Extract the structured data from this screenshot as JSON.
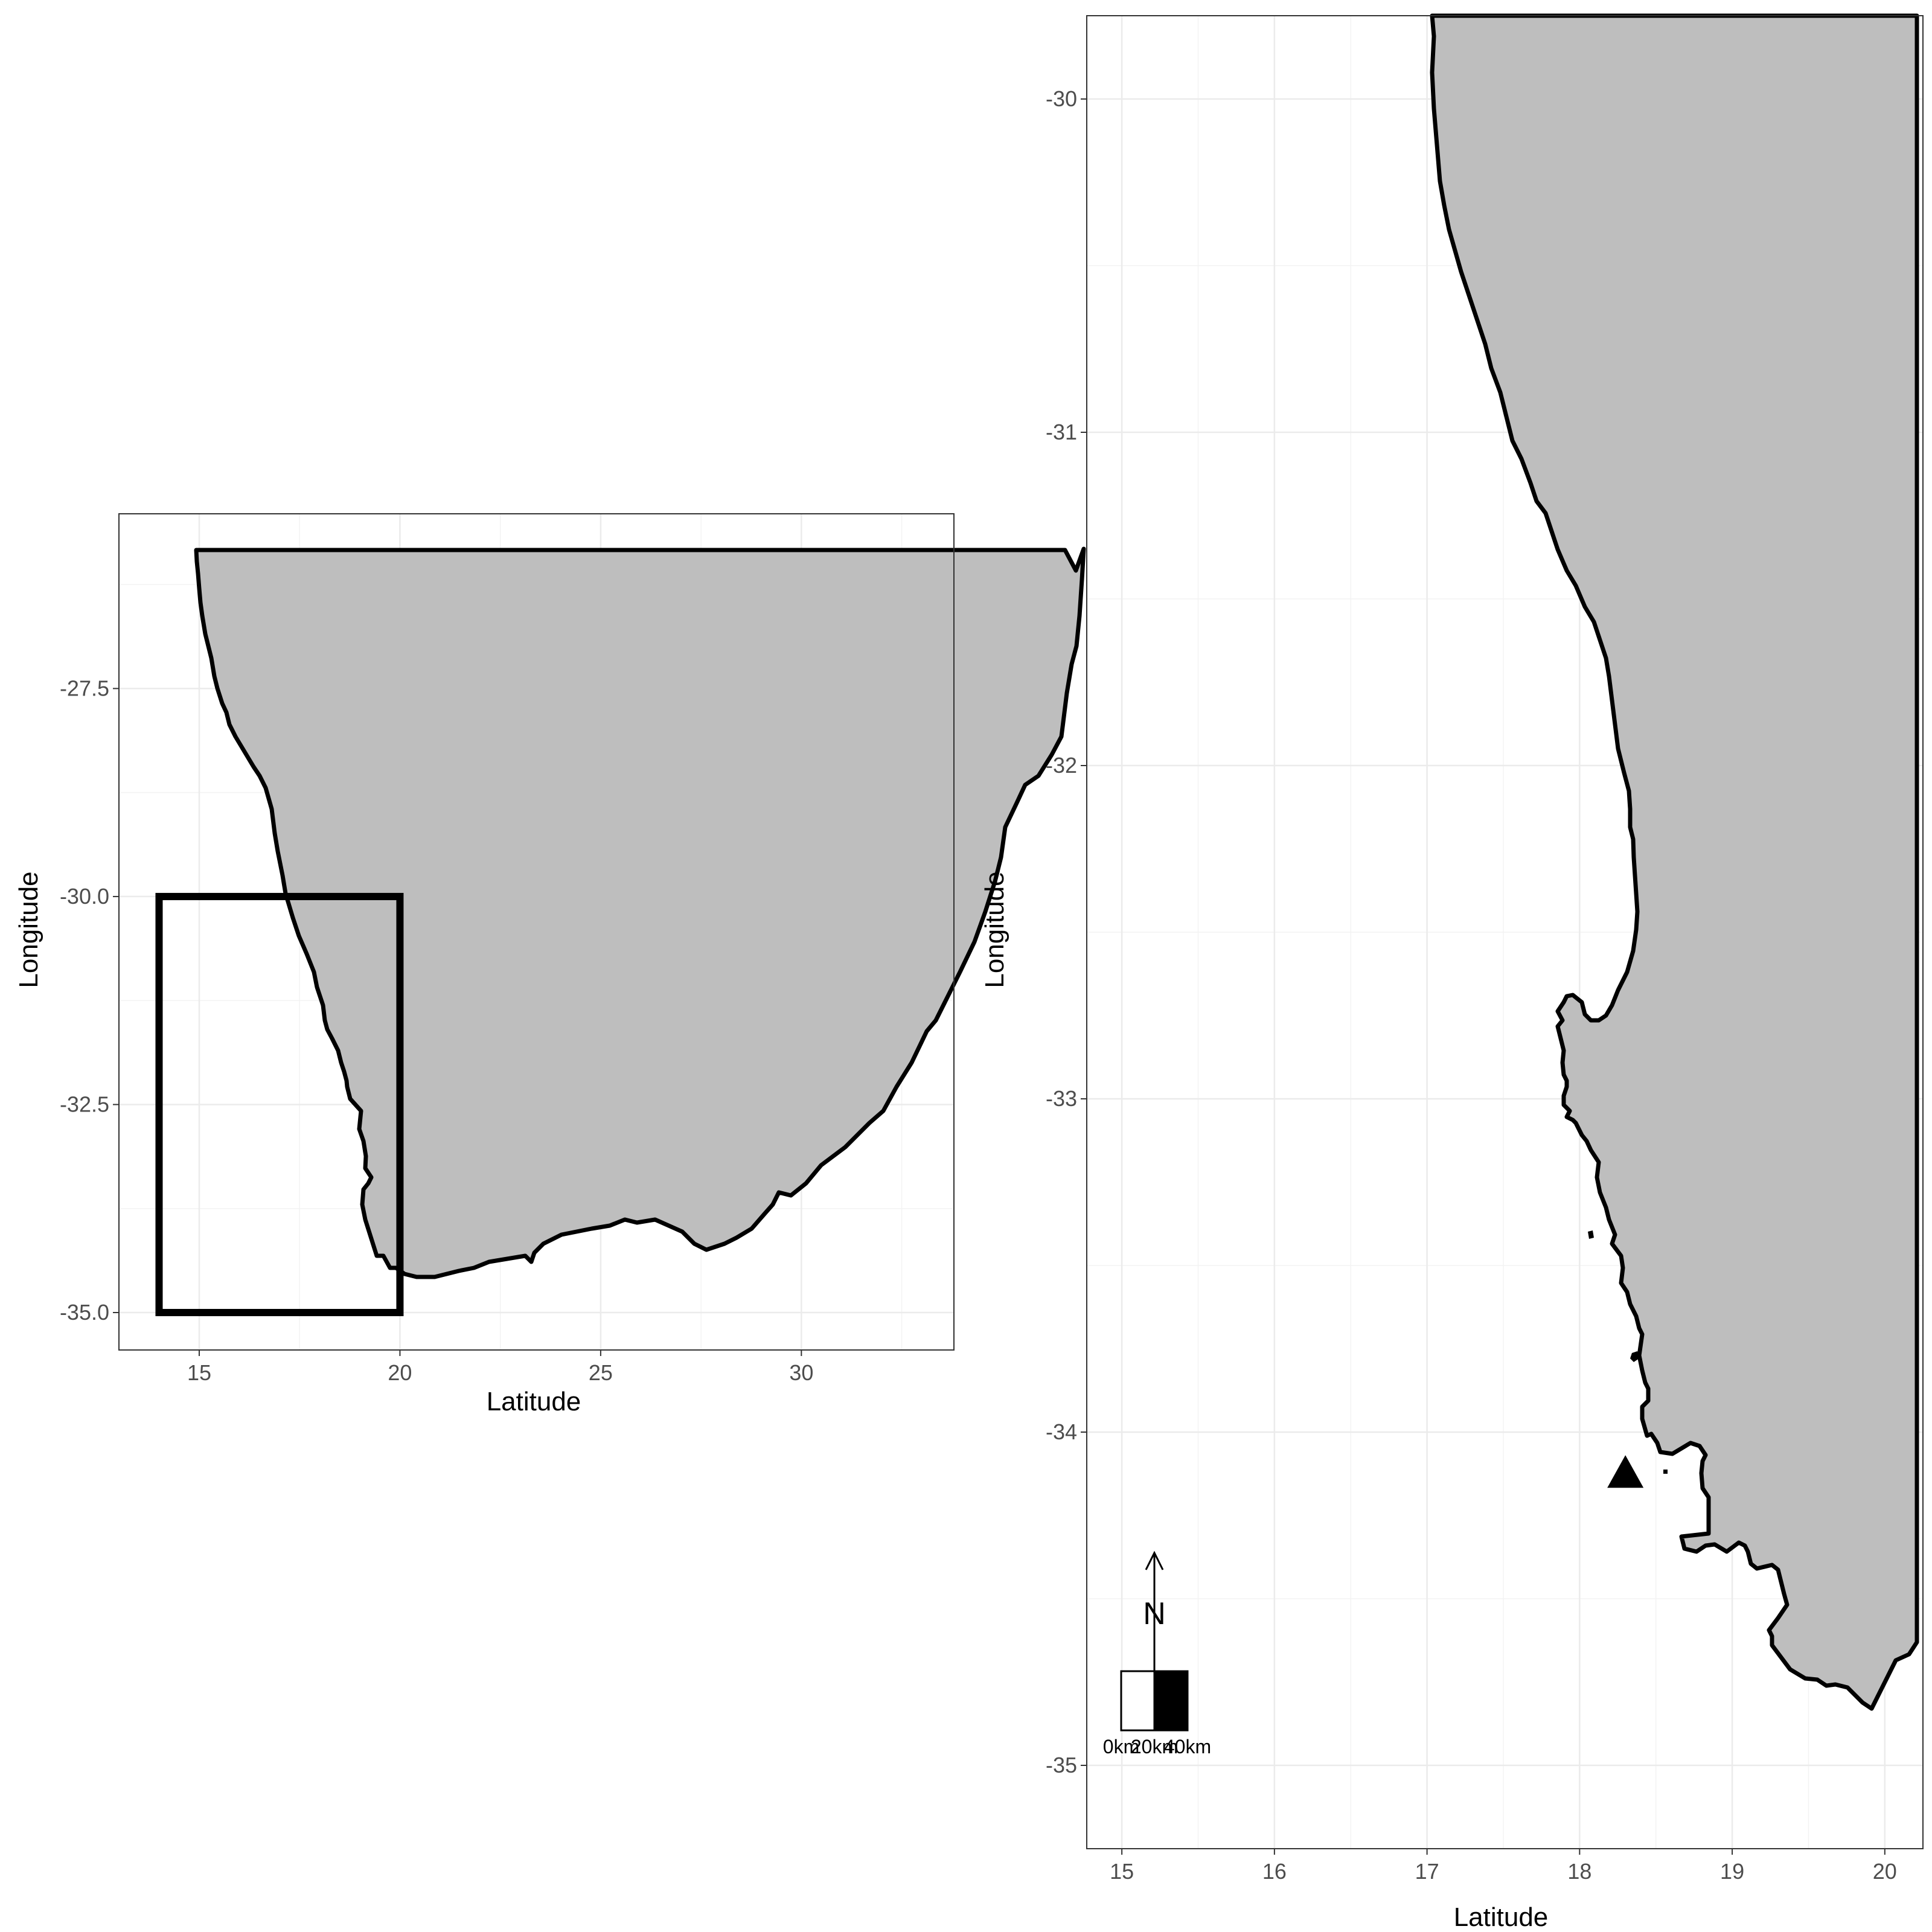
{
  "colors": {
    "land": "#bebebe",
    "coastline": "#000000",
    "grid": "#ebebeb",
    "background": "#ffffff"
  },
  "chart_data": [
    {
      "type": "map",
      "xlabel": "Latitude",
      "ylabel": "Longitude",
      "xlim": [
        13,
        33.8
      ],
      "ylim": [
        -35.45,
        -25.4
      ],
      "x_ticks": [
        "15",
        "20",
        "25",
        "30"
      ],
      "y_ticks": [
        "-27.5",
        "-30.0",
        "-32.5",
        "-35.0"
      ],
      "inset_box": {
        "xmin": 14,
        "xmax": 20,
        "ymin": -35,
        "ymax": -30
      },
      "grid": true
    },
    {
      "type": "map",
      "xlabel": "Latitude",
      "ylabel": "Longitude",
      "xlim": [
        14.77,
        20.25
      ],
      "ylim": [
        -35.25,
        -29.75
      ],
      "x_ticks": [
        "15",
        "16",
        "17",
        "18",
        "19",
        "20"
      ],
      "y_ticks": [
        "-30",
        "-31",
        "-32",
        "-33",
        "-34",
        "-35"
      ],
      "marker": {
        "shape": "triangle",
        "x": 18.3,
        "y": -34.12
      },
      "north_arrow": {
        "label": "N"
      },
      "scale_bar": {
        "labels": [
          "0km",
          "20km",
          "40km"
        ]
      },
      "grid": true
    }
  ]
}
